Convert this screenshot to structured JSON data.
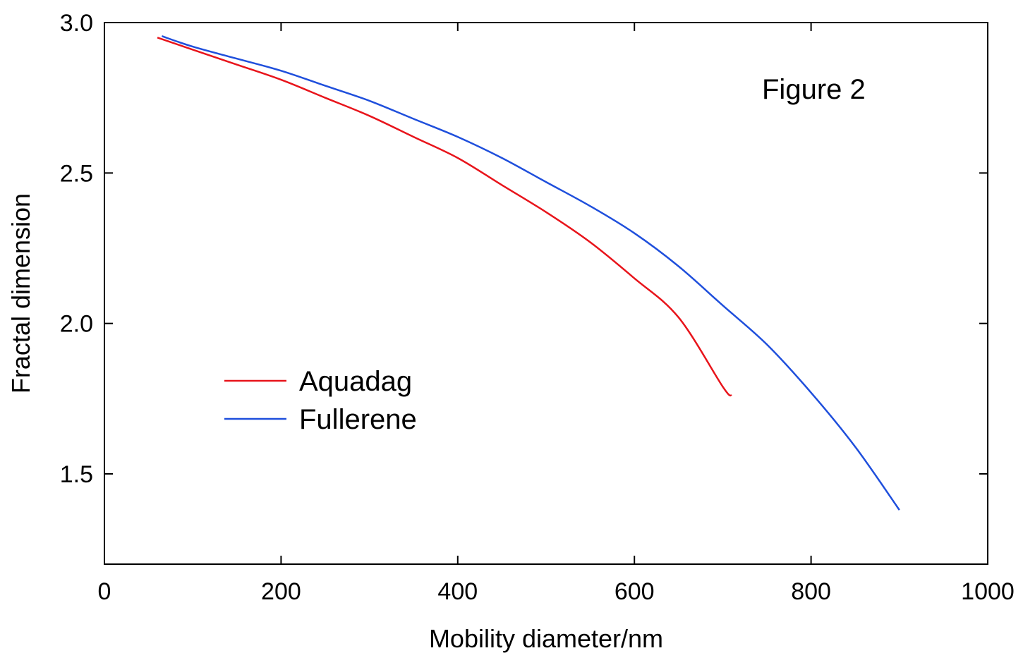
{
  "chart_data": {
    "type": "line",
    "title": "",
    "annotation": "Figure 2",
    "xlabel": "Mobility diameter/nm",
    "ylabel": "Fractal dimension",
    "xlim": [
      0,
      1000
    ],
    "ylim": [
      1.2,
      3.0
    ],
    "xticks": [
      0,
      200,
      400,
      600,
      800,
      1000
    ],
    "xtick_labels": [
      "0",
      "200",
      "400",
      "600",
      "800",
      "1000"
    ],
    "yticks": [
      1.5,
      2.0,
      2.5,
      3.0
    ],
    "ytick_labels": [
      "1.5",
      "2.0",
      "2.5",
      "3.0"
    ],
    "grid": false,
    "legend_position": "middle-left",
    "series": [
      {
        "name": "Aquadag",
        "color": "#e8141b",
        "x": [
          60,
          100,
          150,
          200,
          250,
          300,
          350,
          400,
          450,
          500,
          550,
          600,
          650,
          700,
          710
        ],
        "y": [
          2.95,
          2.91,
          2.86,
          2.81,
          2.75,
          2.69,
          2.62,
          2.55,
          2.46,
          2.37,
          2.27,
          2.15,
          2.02,
          1.79,
          1.76
        ]
      },
      {
        "name": "Fullerene",
        "color": "#1f4fdc",
        "x": [
          65,
          100,
          150,
          200,
          250,
          300,
          350,
          400,
          450,
          500,
          550,
          600,
          650,
          700,
          750,
          800,
          850,
          900
        ],
        "y": [
          2.955,
          2.92,
          2.88,
          2.84,
          2.79,
          2.74,
          2.68,
          2.62,
          2.55,
          2.47,
          2.39,
          2.3,
          2.19,
          2.06,
          1.93,
          1.77,
          1.59,
          1.38
        ]
      }
    ]
  }
}
